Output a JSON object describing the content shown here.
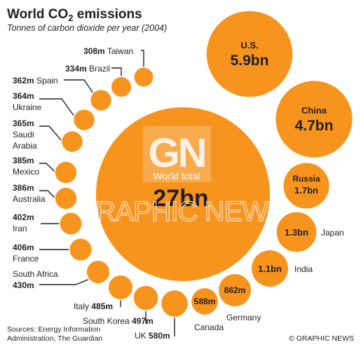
{
  "title_main": "World CO",
  "title_sub": "2",
  "title_end": " emissions",
  "subtitle": "Tonnes of carbon dioxide per year (2004)",
  "colors": {
    "bubble": "#f7941d",
    "bubble_stroke": "#ffffff",
    "text": "#231f20",
    "leader": "#231f20"
  },
  "logo": {
    "letters": "GN",
    "caption": "World total"
  },
  "watermark": "GRAPHIC NEWS",
  "sources": [
    "Sources: Energy Information",
    "Administration, The Guardian"
  ],
  "credit": "© GRAPHIC NEWS",
  "chart_data": {
    "type": "bubble",
    "title": "World CO2 emissions",
    "subtitle": "Tonnes of carbon dioxide per year (2004)",
    "unit": "tonnes of CO2 per year",
    "total": {
      "label": "World total",
      "value_text": "27bn",
      "value": 27000000000
    },
    "items": [
      {
        "country": "U.S.",
        "value_text": "5.9bn",
        "value": 5900000000
      },
      {
        "country": "China",
        "value_text": "4.7bn",
        "value": 4700000000
      },
      {
        "country": "Russia",
        "value_text": "1.7bn",
        "value": 1700000000
      },
      {
        "country": "Japan",
        "value_text": "1.3bn",
        "value": 1300000000
      },
      {
        "country": "India",
        "value_text": "1.1bn",
        "value": 1100000000
      },
      {
        "country": "Germany",
        "value_text": "862m",
        "value": 862000000
      },
      {
        "country": "Canada",
        "value_text": "588m",
        "value": 588000000
      },
      {
        "country": "UK",
        "value_text": "580m",
        "value": 580000000
      },
      {
        "country": "South Korea",
        "value_text": "497m",
        "value": 497000000
      },
      {
        "country": "Italy",
        "value_text": "485m",
        "value": 485000000
      },
      {
        "country": "South Africa",
        "value_text": "430m",
        "value": 430000000
      },
      {
        "country": "France",
        "value_text": "406m",
        "value": 406000000
      },
      {
        "country": "Iran",
        "value_text": "402m",
        "value": 402000000
      },
      {
        "country": "Australia",
        "value_text": "386m",
        "value": 386000000
      },
      {
        "country": "Mexico",
        "value_text": "385m",
        "value": 385000000
      },
      {
        "country": "Saudi Arabia",
        "value_text": "365m",
        "value": 365000000
      },
      {
        "country": "Ukraine",
        "value_text": "364m",
        "value": 364000000
      },
      {
        "country": "Spain",
        "value_text": "362m",
        "value": 362000000
      },
      {
        "country": "Brazil",
        "value_text": "334m",
        "value": 334000000
      },
      {
        "country": "Taiwan",
        "value_text": "308m",
        "value": 308000000
      }
    ]
  }
}
